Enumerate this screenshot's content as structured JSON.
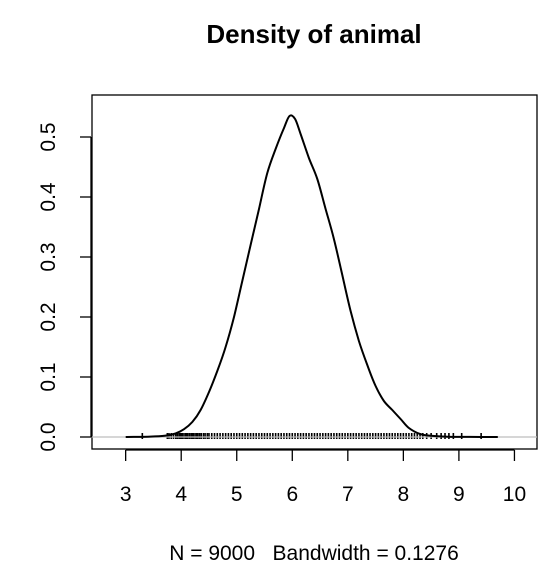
{
  "chart_data": {
    "type": "line",
    "title": "Density of animal",
    "xlabel": "N = 9000   Bandwidth = 0.1276",
    "ylabel": "",
    "xlim": [
      2.7,
      10.1
    ],
    "ylim": [
      0,
      0.55
    ],
    "x_ticks": [
      3,
      4,
      5,
      6,
      7,
      8,
      9,
      10
    ],
    "x_tick_labels": [
      "3",
      "4",
      "5",
      "6",
      "7",
      "8",
      "9",
      "10"
    ],
    "y_ticks": [
      0.0,
      0.1,
      0.2,
      0.3,
      0.4,
      0.5
    ],
    "y_tick_labels": [
      "0.0",
      "0.1",
      "0.2",
      "0.3",
      "0.4",
      "0.5"
    ],
    "grid": false,
    "baseline_y": 0,
    "series": [
      {
        "x": [
          3.0,
          3.4,
          3.7,
          3.9,
          4.05,
          4.2,
          4.35,
          4.5,
          4.65,
          4.8,
          4.95,
          5.1,
          5.25,
          5.4,
          5.55,
          5.7,
          5.85,
          5.95,
          6.05,
          6.15,
          6.3,
          6.45,
          6.6,
          6.75,
          6.9,
          7.05,
          7.2,
          7.35,
          7.5,
          7.65,
          7.8,
          7.95,
          8.1,
          8.3,
          8.5,
          8.8,
          9.2,
          9.7
        ],
        "values": [
          0.0,
          0.0005,
          0.002,
          0.006,
          0.013,
          0.025,
          0.045,
          0.075,
          0.11,
          0.15,
          0.2,
          0.26,
          0.32,
          0.38,
          0.44,
          0.48,
          0.515,
          0.535,
          0.53,
          0.505,
          0.465,
          0.43,
          0.38,
          0.33,
          0.27,
          0.21,
          0.16,
          0.12,
          0.085,
          0.06,
          0.045,
          0.03,
          0.015,
          0.005,
          0.002,
          0.0005,
          0.0001,
          0.0
        ]
      }
    ],
    "rug": [
      3.3,
      3.75,
      3.78,
      3.82,
      3.86,
      3.9,
      3.93,
      3.96,
      3.98,
      4.0,
      4.02,
      4.05,
      4.08,
      4.1,
      4.12,
      4.15,
      4.18,
      4.2,
      4.22,
      4.25,
      4.28,
      4.3,
      4.33,
      4.36,
      4.4,
      4.43,
      4.47,
      4.5,
      4.55,
      4.6,
      4.65,
      4.7,
      4.75,
      4.8,
      4.85,
      4.9,
      4.95,
      5.0,
      5.05,
      5.1,
      5.15,
      5.2,
      5.25,
      5.3,
      5.35,
      5.4,
      5.45,
      5.5,
      5.55,
      5.6,
      5.65,
      5.7,
      5.75,
      5.8,
      5.85,
      5.9,
      5.95,
      6.0,
      6.05,
      6.1,
      6.15,
      6.2,
      6.25,
      6.3,
      6.35,
      6.4,
      6.45,
      6.5,
      6.55,
      6.6,
      6.65,
      6.7,
      6.75,
      6.8,
      6.85,
      6.9,
      6.95,
      7.0,
      7.05,
      7.1,
      7.15,
      7.2,
      7.25,
      7.3,
      7.35,
      7.4,
      7.45,
      7.5,
      7.55,
      7.6,
      7.65,
      7.7,
      7.75,
      7.8,
      7.85,
      7.9,
      7.95,
      8.0,
      8.05,
      8.1,
      8.15,
      8.2,
      8.25,
      8.3,
      8.35,
      8.42,
      8.5,
      8.6,
      8.68,
      8.75,
      8.82,
      8.9,
      9.05,
      9.4
    ]
  }
}
